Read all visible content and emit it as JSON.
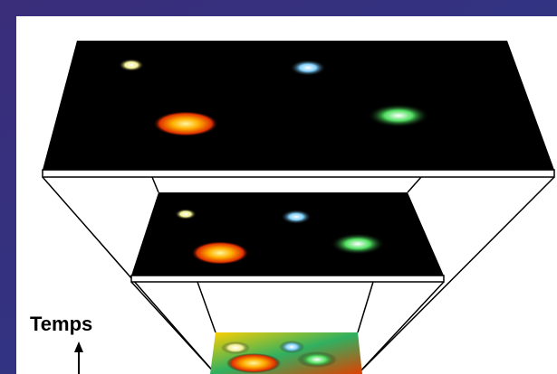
{
  "labels": {
    "time_axis": "Temps"
  }
}
